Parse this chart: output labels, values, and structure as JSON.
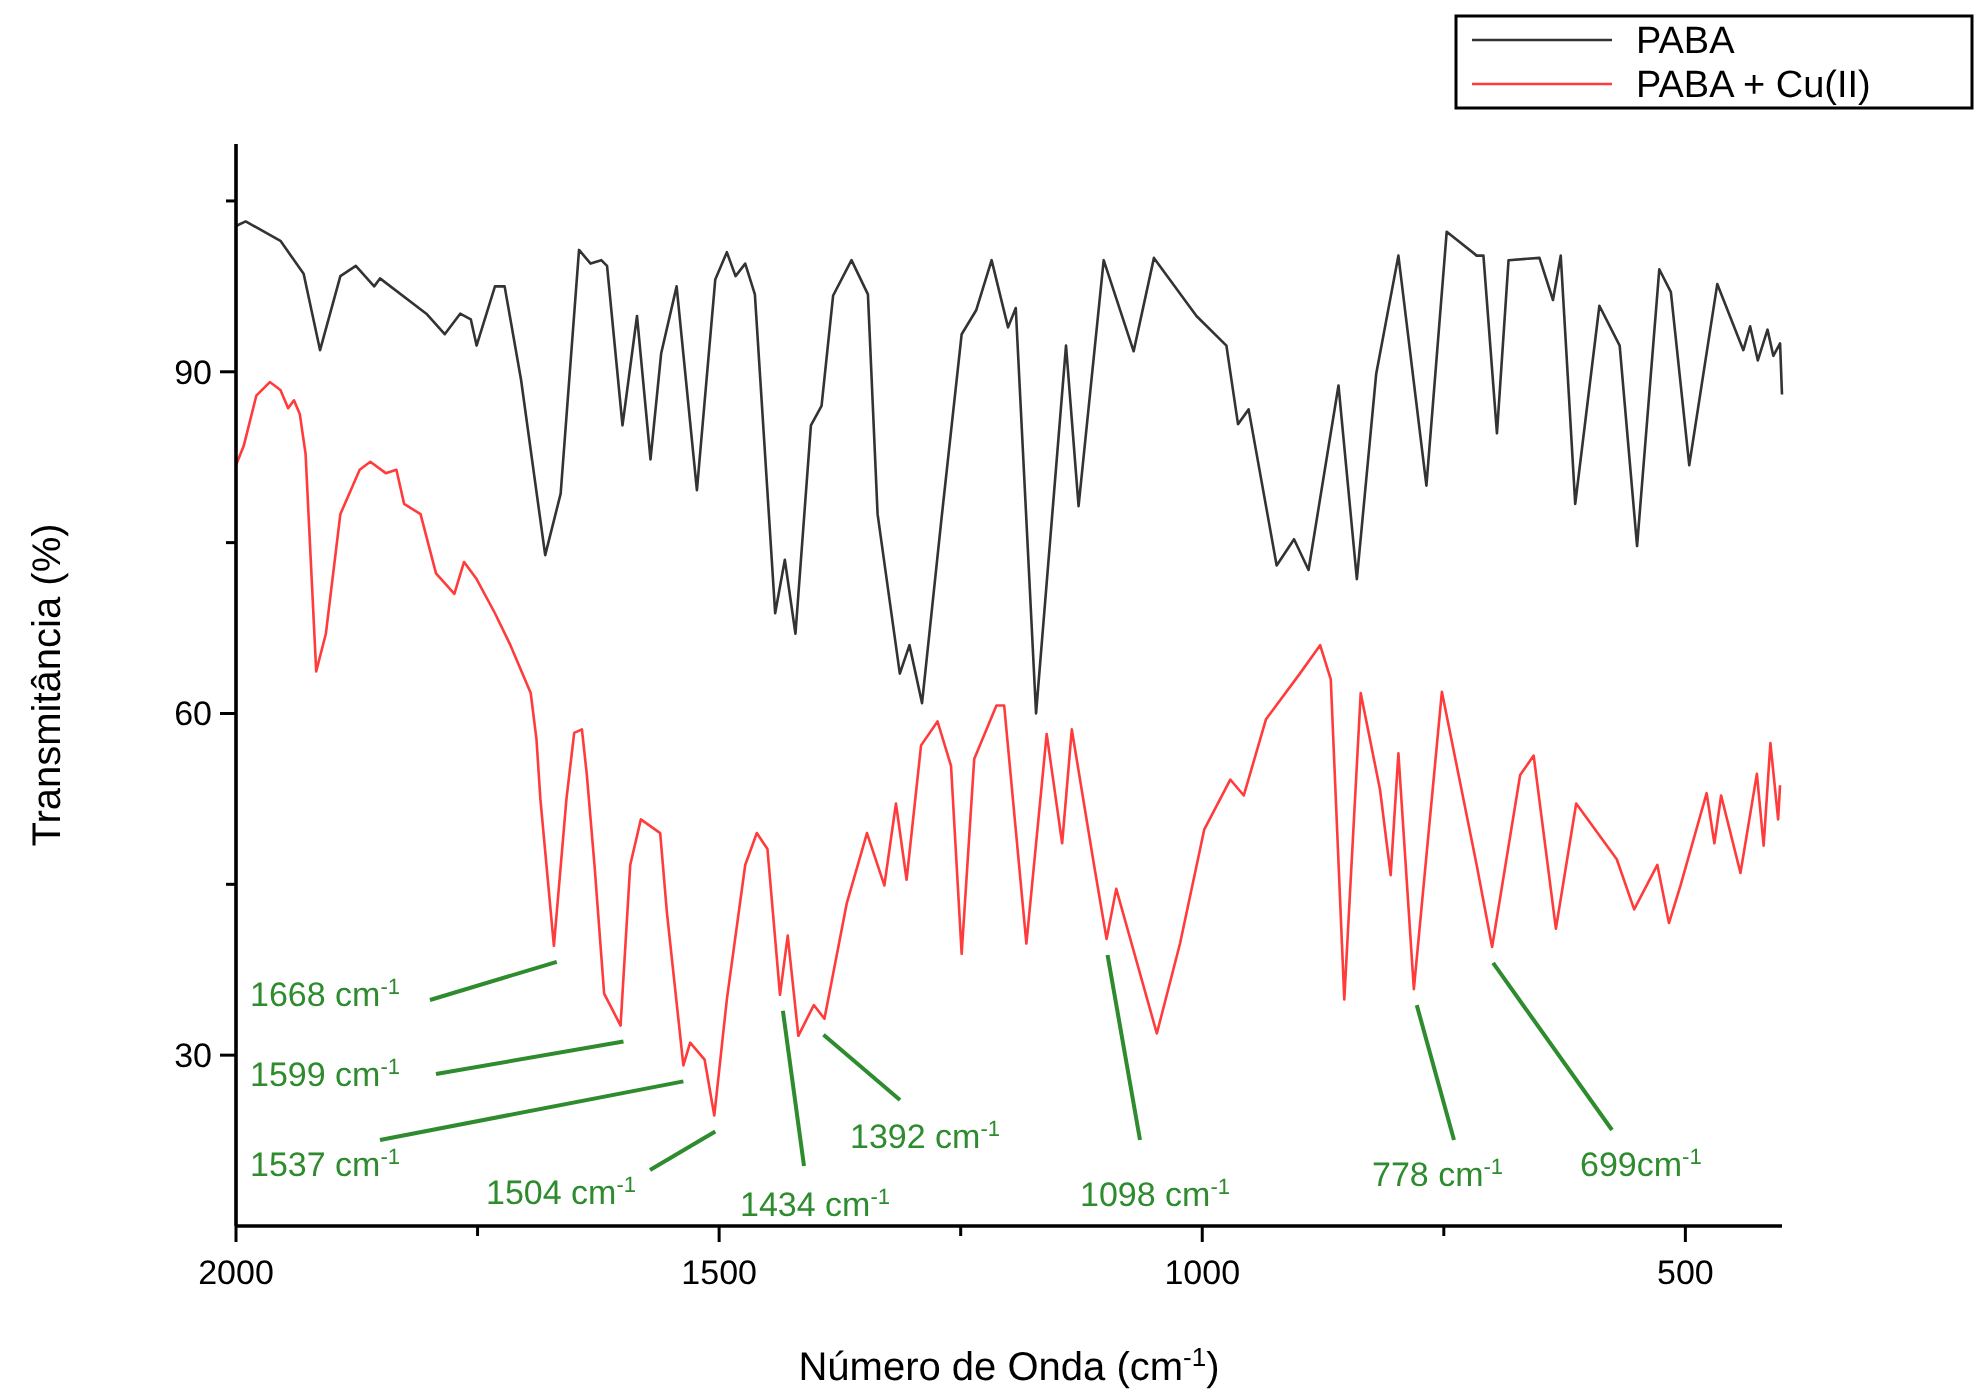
{
  "chart_data": {
    "type": "line",
    "xlabel": "Número de Onda (cm$^{-1}$)",
    "ylabel": "Transmitância (%)",
    "xlim": [
      2000,
      400
    ],
    "ylim": [
      15,
      110
    ],
    "xticks": [
      2000,
      {
        "value": 1750,
        "label": null
      },
      1500,
      {
        "value": 1250,
        "label": null
      },
      1000,
      {
        "value": 750,
        "label": null
      },
      500
    ],
    "yticks": [
      {
        "value": 30,
        "label": "30"
      },
      {
        "value": 45,
        "label": null
      },
      60,
      {
        "value": 75,
        "label": null
      },
      90,
      {
        "value": 105,
        "label": null
      }
    ],
    "grid": false,
    "legend": "top right",
    "marker": "none",
    "line_style": "solid",
    "series": [
      {
        "name": "PABA",
        "color": "#333333",
        "x": [
          2000,
          1990,
          1954,
          1930,
          1913,
          1892,
          1876,
          1857,
          1851,
          1803,
          1784,
          1768,
          1757,
          1751,
          1732,
          1722,
          1705,
          1680,
          1664,
          1645,
          1633,
          1622,
          1616,
          1600,
          1585,
          1571,
          1560,
          1544,
          1523,
          1504,
          1492,
          1483,
          1473,
          1463,
          1442,
          1432,
          1421,
          1405,
          1394,
          1382,
          1363,
          1346,
          1336,
          1313,
          1303,
          1290,
          1270,
          1249,
          1234,
          1218,
          1201,
          1193,
          1172,
          1141,
          1128,
          1102,
          1071,
          1050,
          1006,
          975,
          963,
          952,
          923,
          905,
          890,
          859,
          840,
          820,
          797,
          768,
          747,
          716,
          709,
          695,
          683,
          651,
          637,
          629,
          614,
          589,
          568,
          550,
          527,
          515,
          496,
          467,
          440,
          433,
          425,
          415,
          409,
          402,
          400
        ],
        "values": [
          102.8,
          103.2,
          101.5,
          98.6,
          91.9,
          98.4,
          99.3,
          97.5,
          98.2,
          95.1,
          93.3,
          95.1,
          94.6,
          92.3,
          97.5,
          97.5,
          89.3,
          73.9,
          79.3,
          100.7,
          99.5,
          99.8,
          99.3,
          85.3,
          94.9,
          82.3,
          91.6,
          97.5,
          79.6,
          98.1,
          100.5,
          98.4,
          99.5,
          96.8,
          68.8,
          73.5,
          67,
          85.3,
          87,
          96.7,
          99.8,
          96.8,
          77.5,
          63.5,
          66,
          60.9,
          77,
          93.3,
          95.4,
          99.8,
          93.9,
          95.6,
          60,
          92.3,
          78.2,
          99.8,
          91.8,
          100,
          94.9,
          92.3,
          85.4,
          86.7,
          73,
          75.3,
          72.6,
          88.8,
          71.8,
          89.8,
          100.2,
          80,
          102.3,
          100.2,
          100.2,
          84.6,
          99.8,
          100,
          96.3,
          100.2,
          78.4,
          95.8,
          92.3,
          74.7,
          99,
          97,
          81.8,
          97.7,
          91.9,
          94,
          91,
          93.7,
          91.4,
          92.5,
          88
        ]
      },
      {
        "name": "PABA + Cu(II)",
        "color": "#ff3b3b",
        "x": [
          2000,
          1992,
          1979,
          1965,
          1954,
          1946,
          1940,
          1934,
          1928,
          1917,
          1907,
          1892,
          1872,
          1861,
          1845,
          1834,
          1826,
          1809,
          1793,
          1774,
          1764,
          1751,
          1732,
          1716,
          1695,
          1689,
          1685,
          1671,
          1658,
          1650,
          1642,
          1637,
          1629,
          1619,
          1602,
          1592,
          1581,
          1561,
          1554,
          1537,
          1530,
          1515,
          1505,
          1492,
          1473,
          1461,
          1450,
          1437,
          1429,
          1418,
          1402,
          1391,
          1368,
          1347,
          1329,
          1317,
          1306,
          1291,
          1274,
          1260,
          1249,
          1236,
          1213,
          1205,
          1182,
          1161,
          1145,
          1135,
          1112,
          1099,
          1089,
          1047,
          1023,
          998,
          971,
          957,
          934,
          899,
          878,
          867,
          853,
          836,
          816,
          805,
          797,
          781,
          752,
          716,
          700,
          671,
          657,
          634,
          613,
          571,
          553,
          529,
          517,
          505,
          478,
          470,
          463,
          443,
          426,
          419,
          412,
          404,
          402
        ],
        "values": [
          81.8,
          83.5,
          87.9,
          89.1,
          88.4,
          86.8,
          87.5,
          86.3,
          82.8,
          63.7,
          67,
          77.5,
          81.4,
          82.1,
          81.1,
          81.4,
          78.4,
          77.5,
          72.3,
          70.5,
          73.3,
          71.8,
          68.8,
          66,
          61.8,
          57.7,
          52.5,
          39.6,
          52.5,
          58.3,
          58.6,
          54.7,
          46.7,
          35.4,
          32.6,
          46.7,
          50.7,
          49.5,
          42.5,
          29.1,
          31.1,
          29.6,
          24.7,
          34.9,
          46.7,
          49.5,
          48.1,
          35.3,
          40.5,
          31.7,
          34.4,
          33.2,
          43.3,
          49.5,
          44.9,
          52.1,
          45.4,
          57.2,
          59.3,
          55.4,
          38.9,
          56,
          60.7,
          60.7,
          39.8,
          58.2,
          48.6,
          58.6,
          46.7,
          40.2,
          44.6,
          31.9,
          39.8,
          49.8,
          54.2,
          52.8,
          59.5,
          63.5,
          66,
          63,
          34.9,
          61.8,
          53.3,
          45.8,
          56.5,
          35.8,
          61.9,
          46.7,
          39.5,
          54.6,
          56.3,
          41.1,
          52.1,
          47.2,
          42.8,
          46.7,
          41.6,
          44.9,
          53,
          48.6,
          52.8,
          46,
          54.7,
          48.4,
          57.4,
          50.7,
          53.7
        ]
      }
    ],
    "annotations": [
      {
        "text": "1668 cm$^{-1}$",
        "x": 1668,
        "y": 39.6
      },
      {
        "text": "1599 cm$^{-1}$",
        "x": 1599,
        "y": 32.6
      },
      {
        "text": "1537 cm$^{-1}$",
        "x": 1537,
        "y": 29.1
      },
      {
        "text": "1504 cm$^{-1}$",
        "x": 1504,
        "y": 24.7
      },
      {
        "text": "1434 cm$^{-1}$",
        "x": 1434,
        "y": 35.3
      },
      {
        "text": "1392 cm$^{-1}$",
        "x": 1392,
        "y": 33.2
      },
      {
        "text": "1098 cm$^{-1}$",
        "x": 1098,
        "y": 40.2
      },
      {
        "text": "778 cm$^{-1}$",
        "x": 778,
        "y": 35.8
      },
      {
        "text": "699cm$^{-1}$",
        "x": 699,
        "y": 39.5
      }
    ]
  }
}
